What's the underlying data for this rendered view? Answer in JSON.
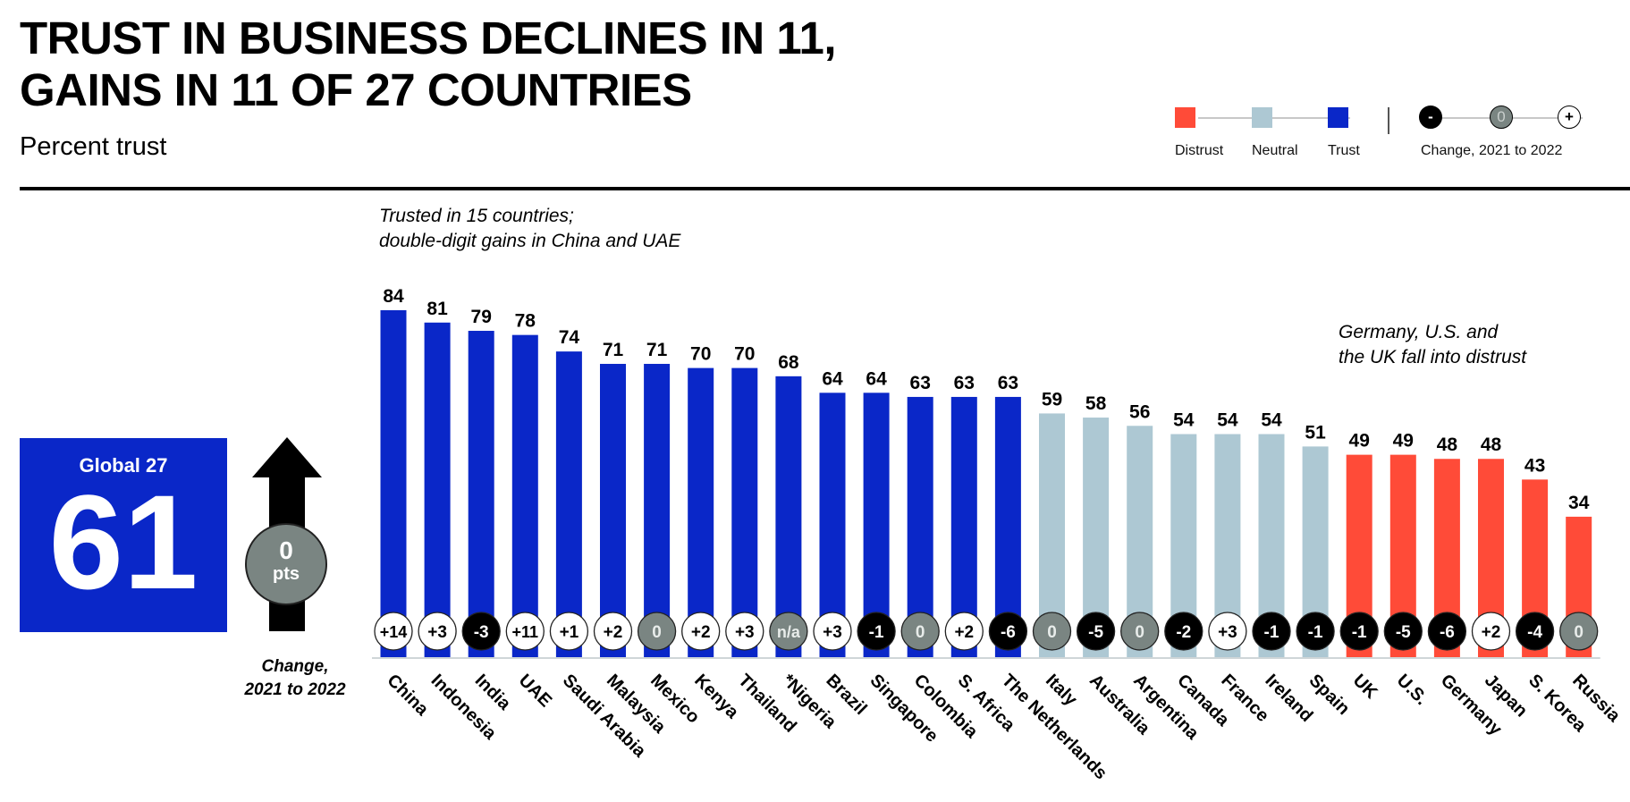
{
  "header": {
    "title_line1": "TRUST IN BUSINESS DECLINES IN 11,",
    "title_line2": "GAINS IN 11 OF 27 COUNTRIES",
    "subtitle": "Percent trust"
  },
  "legend": {
    "distrust": "Distrust",
    "neutral": "Neutral",
    "trust": "Trust",
    "change_label": "Change, 2021 to 2022",
    "minus": "-",
    "zero": "0",
    "plus": "+"
  },
  "colors": {
    "trust": "#0a27c8",
    "neutral": "#adc8d3",
    "distrust": "#ff4b38",
    "change_negative": "#000000",
    "change_zero": "#7a8582",
    "change_positive": "#ffffff"
  },
  "global": {
    "label": "Global 27",
    "value": "61",
    "change_value": "0",
    "change_unit": "pts",
    "change_caption_line1": "Change,",
    "change_caption_line2": "2021 to 2022"
  },
  "annotations": {
    "left_line1": "Trusted in 15 countries;",
    "left_line2": "double-digit gains in China and UAE",
    "right_line1": "Germany, U.S. and",
    "right_line2": "the UK fall into distrust"
  },
  "chart_data": {
    "type": "bar",
    "title": "TRUST IN BUSINESS DECLINES IN 11, GAINS IN 11 OF 27 COUNTRIES",
    "subtitle": "Percent trust",
    "xlabel": "",
    "ylabel": "Percent trust",
    "ylim": [
      0,
      100
    ],
    "grid": false,
    "legend": "top-right",
    "categories": [
      "China",
      "Indonesia",
      "India",
      "UAE",
      "Saudi Arabia",
      "Malaysia",
      "Mexico",
      "Kenya",
      "Thailand",
      "*Nigeria",
      "Brazil",
      "Singapore",
      "Colombia",
      "S. Africa",
      "The Netherlands",
      "Italy",
      "Australia",
      "Argentina",
      "Canada",
      "France",
      "Ireland",
      "Spain",
      "UK",
      "U.S.",
      "Germany",
      "Japan",
      "S. Korea",
      "Russia"
    ],
    "values": [
      84,
      81,
      79,
      78,
      74,
      71,
      71,
      70,
      70,
      68,
      64,
      64,
      63,
      63,
      63,
      59,
      58,
      56,
      54,
      54,
      54,
      51,
      49,
      49,
      48,
      48,
      43,
      34
    ],
    "category_level": [
      "trust",
      "trust",
      "trust",
      "trust",
      "trust",
      "trust",
      "trust",
      "trust",
      "trust",
      "trust",
      "trust",
      "trust",
      "trust",
      "trust",
      "trust",
      "neutral",
      "neutral",
      "neutral",
      "neutral",
      "neutral",
      "neutral",
      "neutral",
      "distrust",
      "distrust",
      "distrust",
      "distrust",
      "distrust",
      "distrust"
    ],
    "change_2021_to_2022": [
      "+14",
      "+3",
      "-3",
      "+11",
      "+1",
      "+2",
      "0",
      "+2",
      "+3",
      "n/a",
      "+3",
      "-1",
      "0",
      "+2",
      "-6",
      "0",
      "-5",
      "0",
      "-2",
      "+3",
      "-1",
      "-1",
      "-1",
      "-5",
      "-6",
      "+2",
      "-4",
      "0"
    ]
  }
}
